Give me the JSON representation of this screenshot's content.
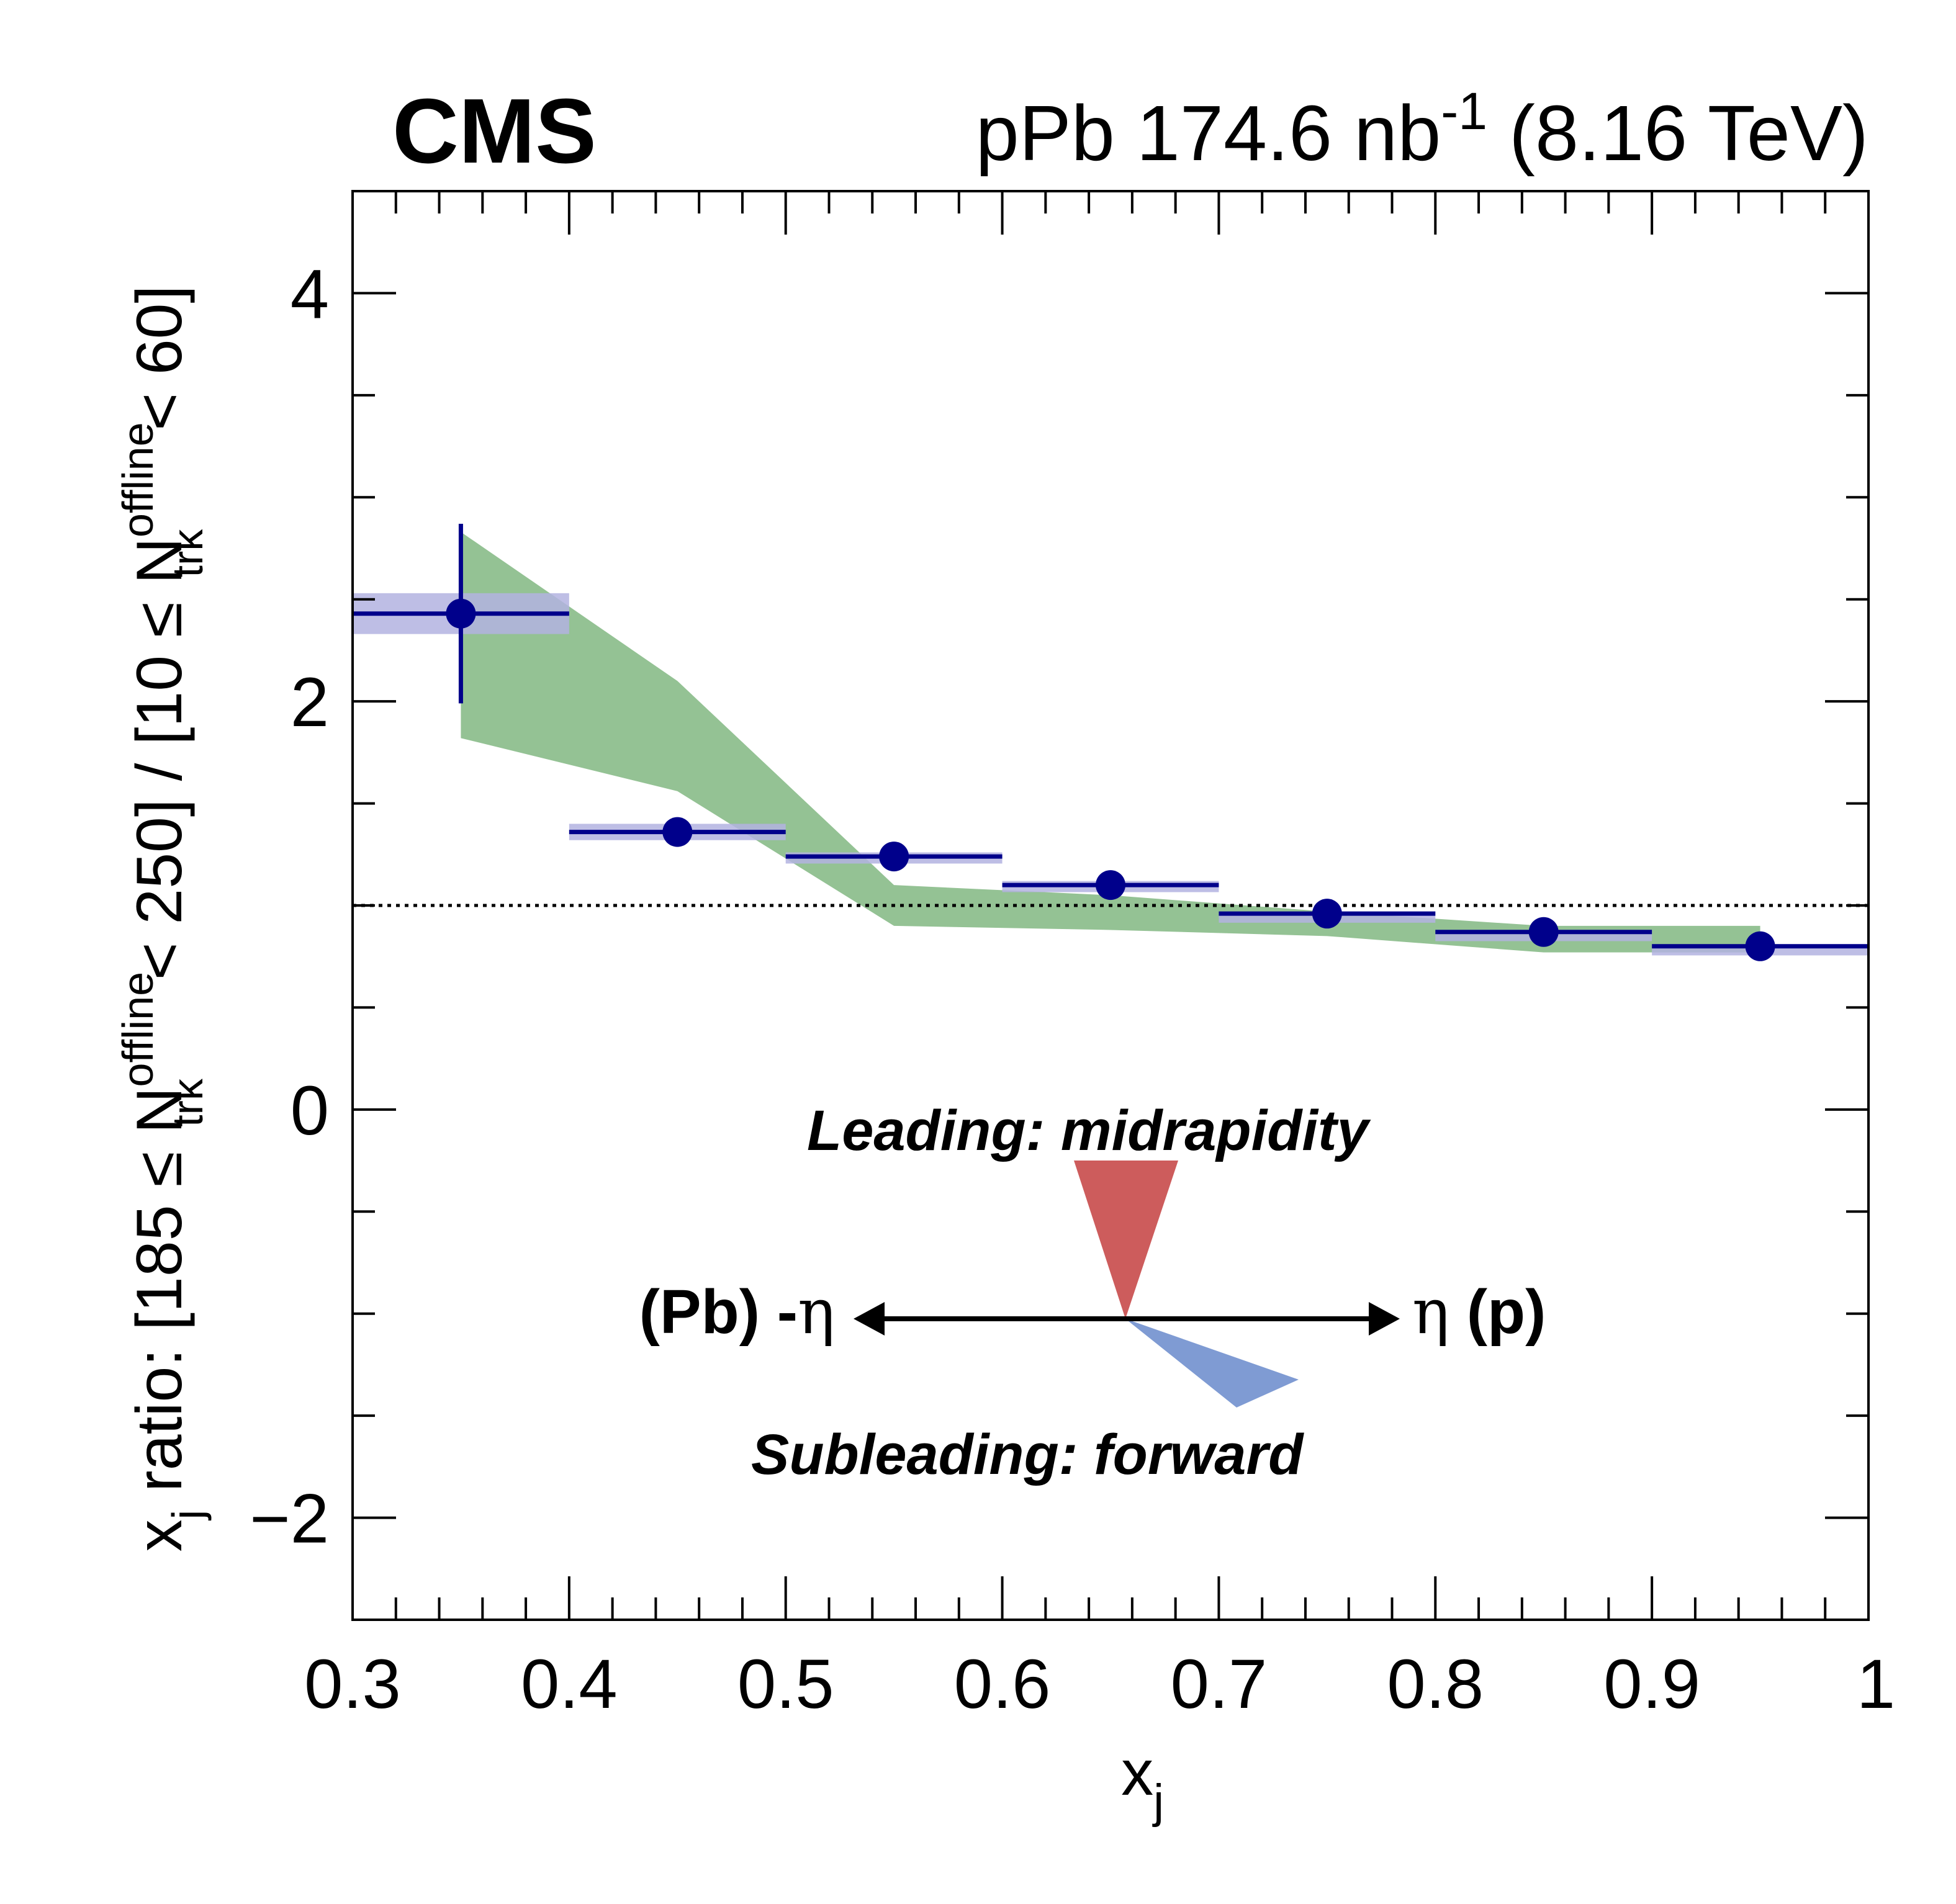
{
  "header": {
    "experiment": "CMS",
    "run_prefix": "pPb 174.6 nb",
    "run_superscript": "-1",
    "run_suffix": " (8.16 TeV)"
  },
  "annotations": {
    "leading": "Leading: midrapidity",
    "subleading": "Subleading: forward",
    "left_bold": "(Pb) -",
    "left_symbol": "η",
    "right_symbol": "η",
    "right_bold": " (p)",
    "colors": {
      "leading": "#cd5c5c",
      "subleading": "#7f9bd3",
      "arrow": "#000000"
    }
  },
  "chart_data": {
    "type": "scatter",
    "xlabel": {
      "main": "x",
      "sub": "j"
    },
    "ylabel": {
      "p1": "x",
      "p1_sub": "j",
      "p2": " ratio: [185 ≤ N",
      "p2_sup": "offline",
      "p2_sub": "trk",
      "p3": " < 250] / [10 ≤ N",
      "p3_sup": "offline",
      "p3_sub": "trk",
      "p4": " < 60]"
    },
    "xlim": [
      0.3,
      1.0
    ],
    "ylim": [
      -2.5,
      4.5
    ],
    "xticks": [
      {
        "v": 0.3,
        "label": "0.3"
      },
      {
        "v": 0.4,
        "label": "0.4"
      },
      {
        "v": 0.5,
        "label": "0.5"
      },
      {
        "v": 0.6,
        "label": "0.6"
      },
      {
        "v": 0.7,
        "label": "0.7"
      },
      {
        "v": 0.8,
        "label": "0.8"
      },
      {
        "v": 0.9,
        "label": "0.9"
      },
      {
        "v": 1.0,
        "label": "1"
      }
    ],
    "yticks": [
      {
        "v": -2,
        "label": "−2"
      },
      {
        "v": 0,
        "label": "0"
      },
      {
        "v": 2,
        "label": "2"
      },
      {
        "v": 4,
        "label": "4"
      }
    ],
    "reference_line": 1.0,
    "data": {
      "name": "pPb data",
      "color": "#00008b",
      "syst_color": "#b3b3e0",
      "points": [
        {
          "x": 0.35,
          "y": 2.43,
          "xlo": 0.3,
          "xhi": 0.4,
          "stat": 0.44,
          "syst": 0.1
        },
        {
          "x": 0.45,
          "y": 1.36,
          "xlo": 0.4,
          "xhi": 0.5,
          "stat": 0.05,
          "syst": 0.04
        },
        {
          "x": 0.55,
          "y": 1.24,
          "xlo": 0.5,
          "xhi": 0.6,
          "stat": 0.03,
          "syst": 0.02
        },
        {
          "x": 0.65,
          "y": 1.1,
          "xlo": 0.6,
          "xhi": 0.7,
          "stat": 0.02,
          "syst": 0.02
        },
        {
          "x": 0.75,
          "y": 0.96,
          "xlo": 0.7,
          "xhi": 0.8,
          "stat": 0.02,
          "syst": 0.01
        },
        {
          "x": 0.85,
          "y": 0.87,
          "xlo": 0.8,
          "xhi": 0.9,
          "stat": 0.02,
          "syst": 0.01
        },
        {
          "x": 0.95,
          "y": 0.8,
          "xlo": 0.9,
          "xhi": 1.0,
          "stat": 0.02,
          "syst": 0.01
        }
      ]
    },
    "model": {
      "name": "band",
      "color": "#94c294",
      "x": [
        0.35,
        0.45,
        0.55,
        0.65,
        0.75,
        0.85,
        0.95
      ],
      "lo": [
        1.82,
        1.56,
        0.9,
        0.88,
        0.85,
        0.77,
        0.77
      ],
      "hi": [
        2.83,
        2.1,
        1.1,
        1.05,
        0.97,
        0.9,
        0.9
      ]
    }
  }
}
